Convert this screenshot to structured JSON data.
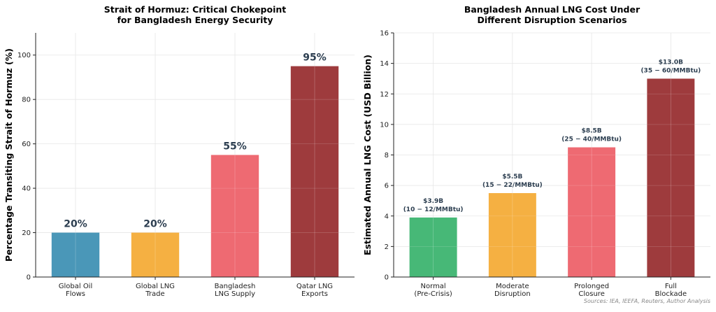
{
  "source_note": "Sources: IEA, IEEFA, Reuters, Author Analysis",
  "chart_data": [
    {
      "type": "bar",
      "title_lines": [
        "Strait of Hormuz: Critical Chokepoint",
        "for Bangladesh Energy Security"
      ],
      "ylabel": "Percentage Transiting Strait of Hormuz (%)",
      "ylim": [
        0,
        110
      ],
      "yticks": [
        0,
        20,
        40,
        60,
        80,
        100
      ],
      "categories": [
        [
          "Global Oil",
          "Flows"
        ],
        [
          "Global LNG",
          "Trade"
        ],
        [
          "Bangladesh",
          "LNG Supply"
        ],
        [
          "Qatar LNG",
          "Exports"
        ]
      ],
      "values": [
        20,
        20,
        55,
        95
      ],
      "data_labels": [
        [
          "20%"
        ],
        [
          "20%"
        ],
        [
          "55%"
        ],
        [
          "95%"
        ]
      ],
      "colors": [
        "#4a97b8",
        "#f5b042",
        "#ee6a72",
        "#9e3b3d"
      ],
      "grid": true
    },
    {
      "type": "bar",
      "title_lines": [
        "Bangladesh Annual LNG Cost Under",
        "Different Disruption Scenarios"
      ],
      "ylabel": "Estimated Annual LNG Cost (USD Billion)",
      "ylim": [
        0,
        16
      ],
      "yticks": [
        0,
        2,
        4,
        6,
        8,
        10,
        12,
        14,
        16
      ],
      "categories": [
        [
          "Normal",
          "(Pre-Crisis)"
        ],
        [
          "Moderate",
          "Disruption"
        ],
        [
          "Prolonged",
          "Closure"
        ],
        [
          "Full",
          "Blockade"
        ]
      ],
      "values": [
        3.9,
        5.5,
        8.5,
        13.0
      ],
      "data_labels": [
        [
          "$3.9B",
          "(10 − 12/MMBtu)"
        ],
        [
          "$5.5B",
          "(15 − 22/MMBtu)"
        ],
        [
          "$8.5B",
          "(25 − 40/MMBtu)"
        ],
        [
          "$13.0B",
          "(35 − 60/MMBtu)"
        ]
      ],
      "colors": [
        "#47b877",
        "#f5b042",
        "#ee6a72",
        "#9e3b3d"
      ],
      "grid": true
    }
  ]
}
